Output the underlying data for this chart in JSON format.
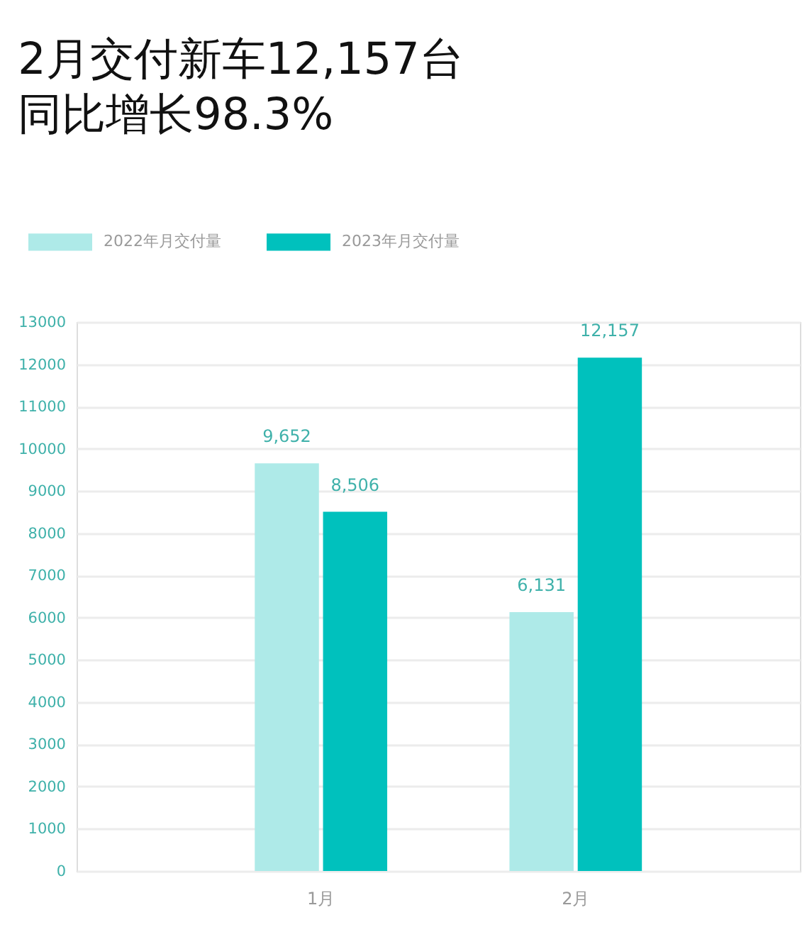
{
  "chart_data": {
    "type": "bar",
    "title": "2月交付新车12,157台",
    "subtitle": "同比增长98.3%",
    "categories": [
      "1月",
      "2月"
    ],
    "series": [
      {
        "name": "2022年月交付量",
        "color": "#aeeae8",
        "values": [
          9652,
          6131
        ],
        "value_labels": [
          "9,652",
          "6,131"
        ]
      },
      {
        "name": "2023年月交付量",
        "color": "#00c1bd",
        "values": [
          8506,
          12157
        ],
        "value_labels": [
          "8,506",
          "12,157"
        ]
      }
    ],
    "ylim": [
      0,
      13000
    ],
    "yticks": [
      0,
      1000,
      2000,
      3000,
      4000,
      5000,
      6000,
      7000,
      8000,
      9000,
      10000,
      11000,
      12000,
      13000
    ],
    "grid": "y",
    "legend": "top left"
  }
}
